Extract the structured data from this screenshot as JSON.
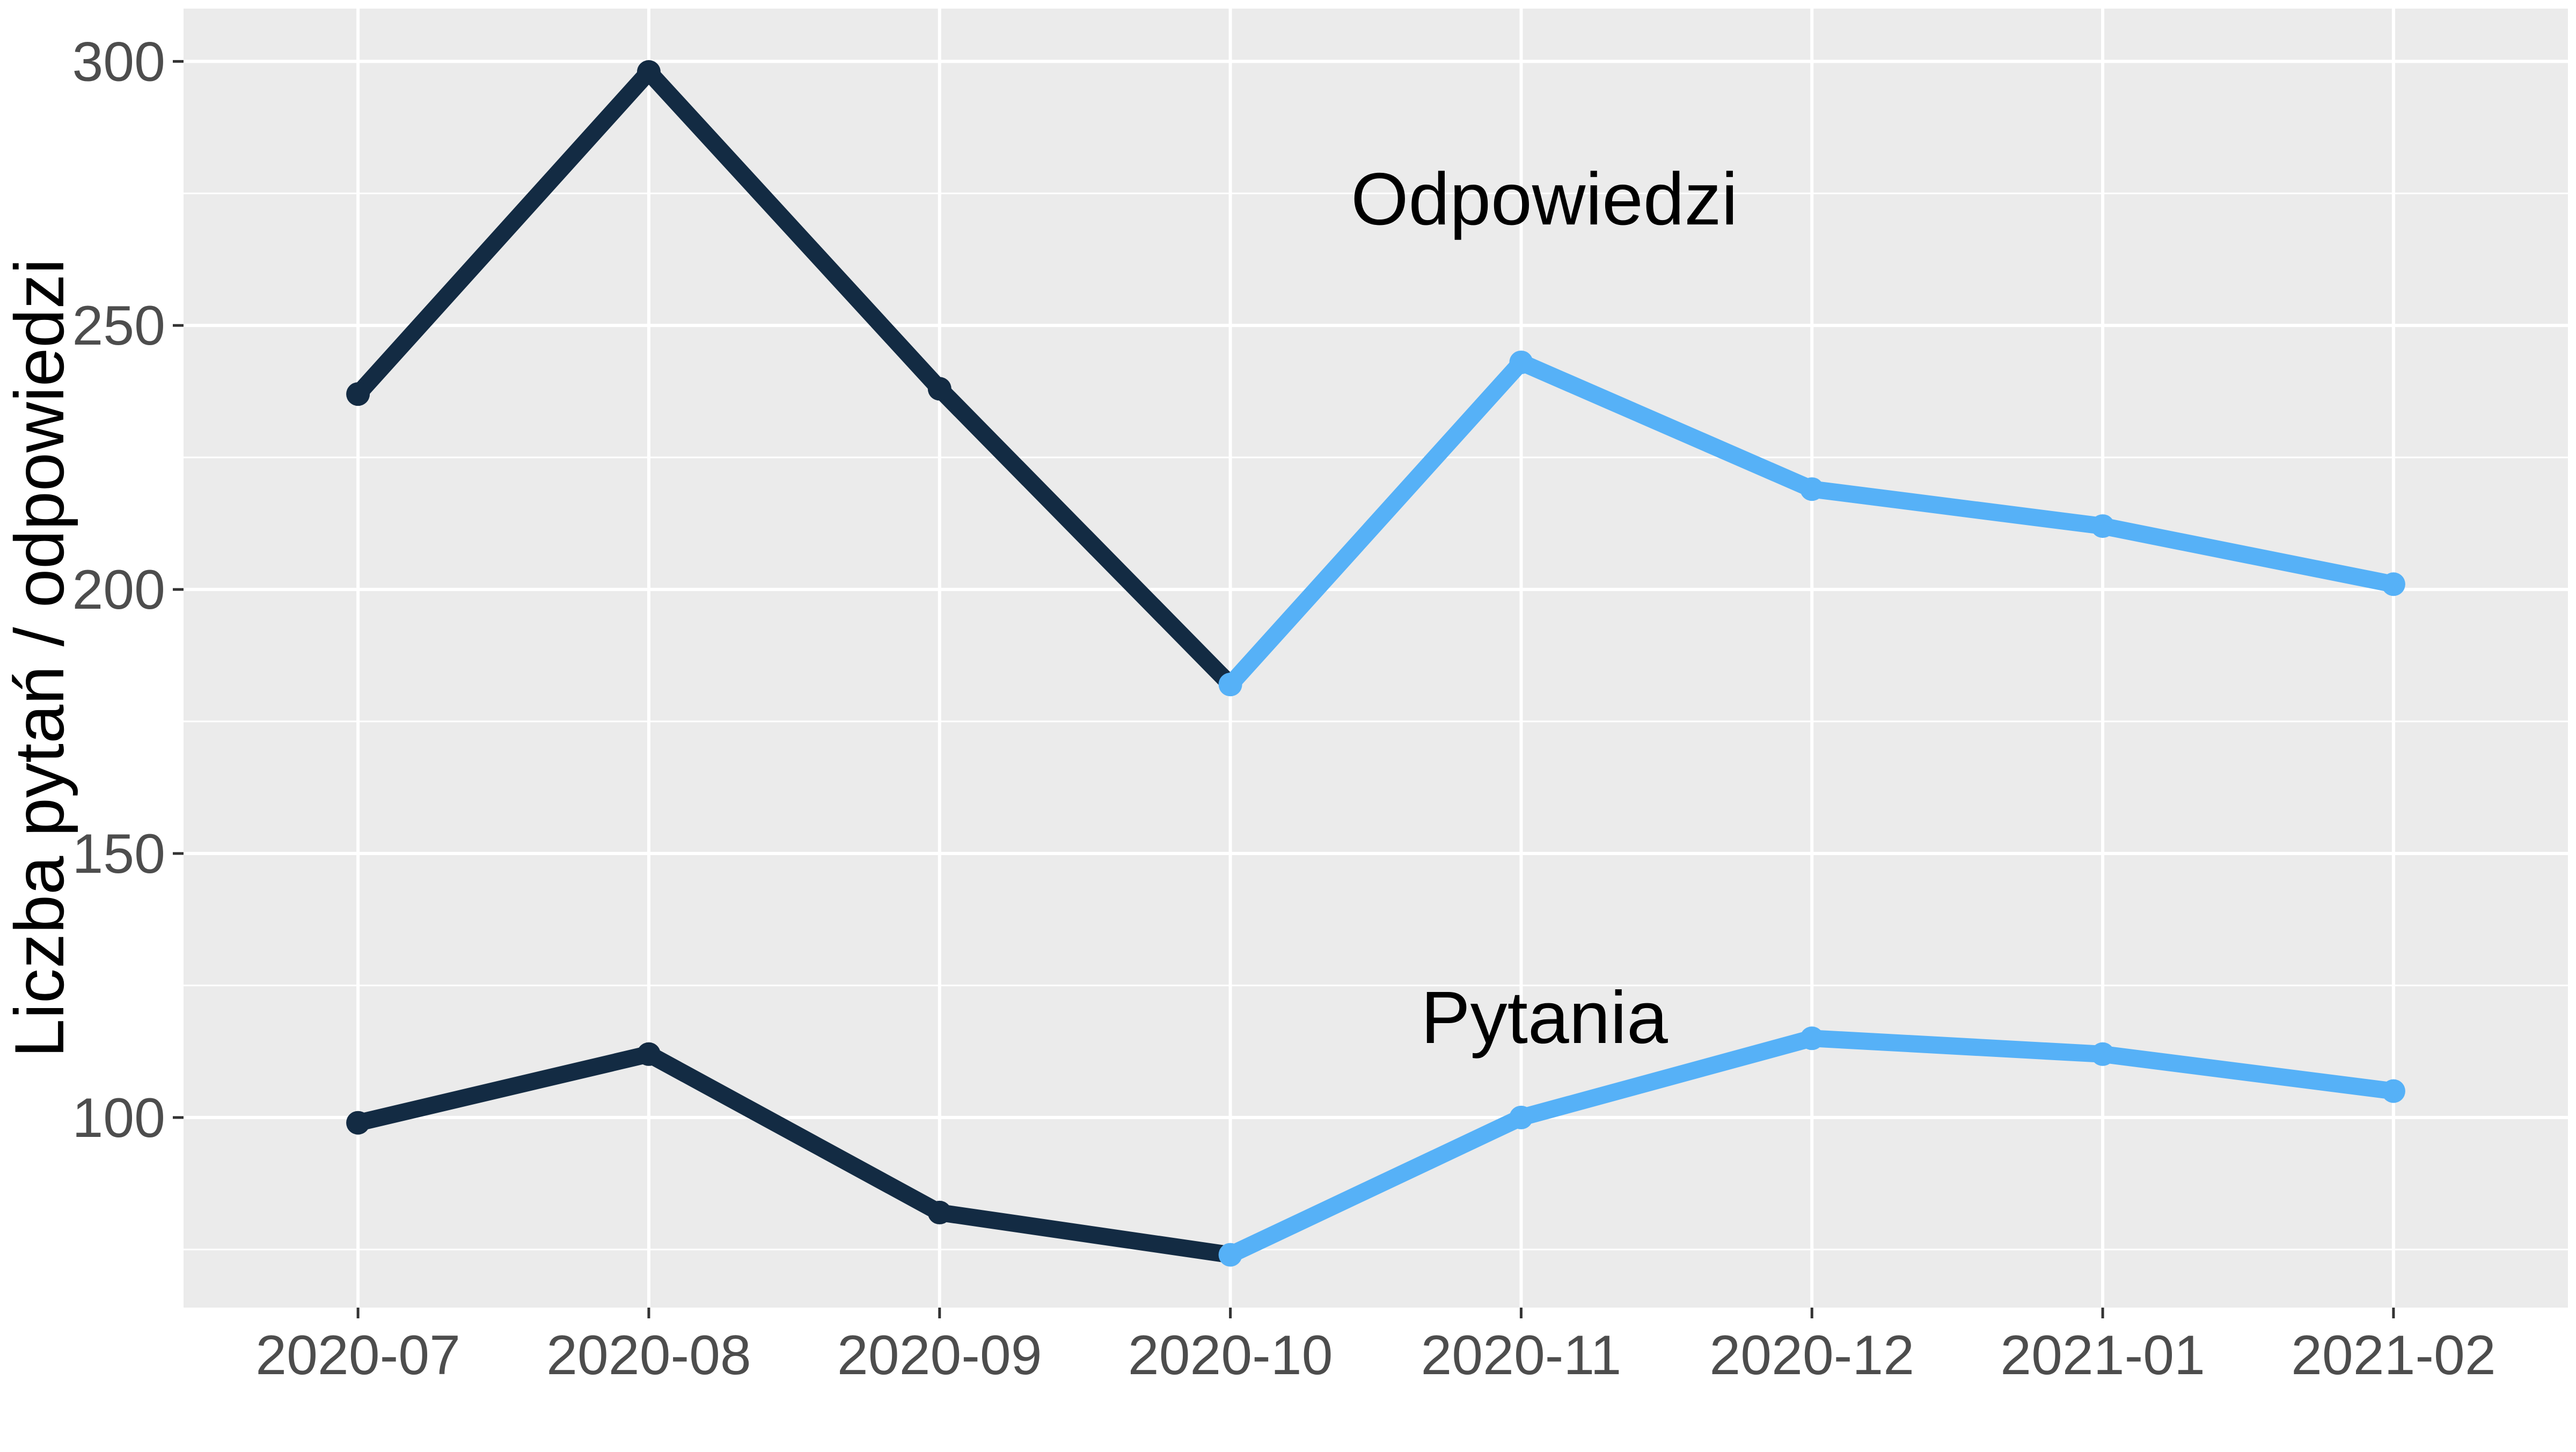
{
  "chart_data": {
    "type": "line",
    "title": "",
    "xlabel": "",
    "ylabel": "Liczba pytań / odpowiedzi",
    "categories": [
      "2020-07",
      "2020-08",
      "2020-09",
      "2020-10",
      "2020-11",
      "2020-12",
      "2021-01",
      "2021-02"
    ],
    "ylim": [
      64,
      310
    ],
    "yticks": [
      100,
      150,
      200,
      250,
      300
    ],
    "grid": true,
    "legend": "none",
    "series": [
      {
        "values": [
          237,
          298,
          238,
          182,
          243,
          219,
          212,
          201
        ],
        "annotation": "Odpowiedzi"
      },
      {
        "values": [
          99,
          112,
          82,
          74,
          100,
          115,
          112,
          105
        ],
        "annotation": "Pytania"
      }
    ],
    "colors": {
      "before": "#132b43",
      "after": "#56b1f7",
      "panel": "#ebebeb",
      "grid": "#ffffff"
    },
    "color_split_index": 3
  }
}
